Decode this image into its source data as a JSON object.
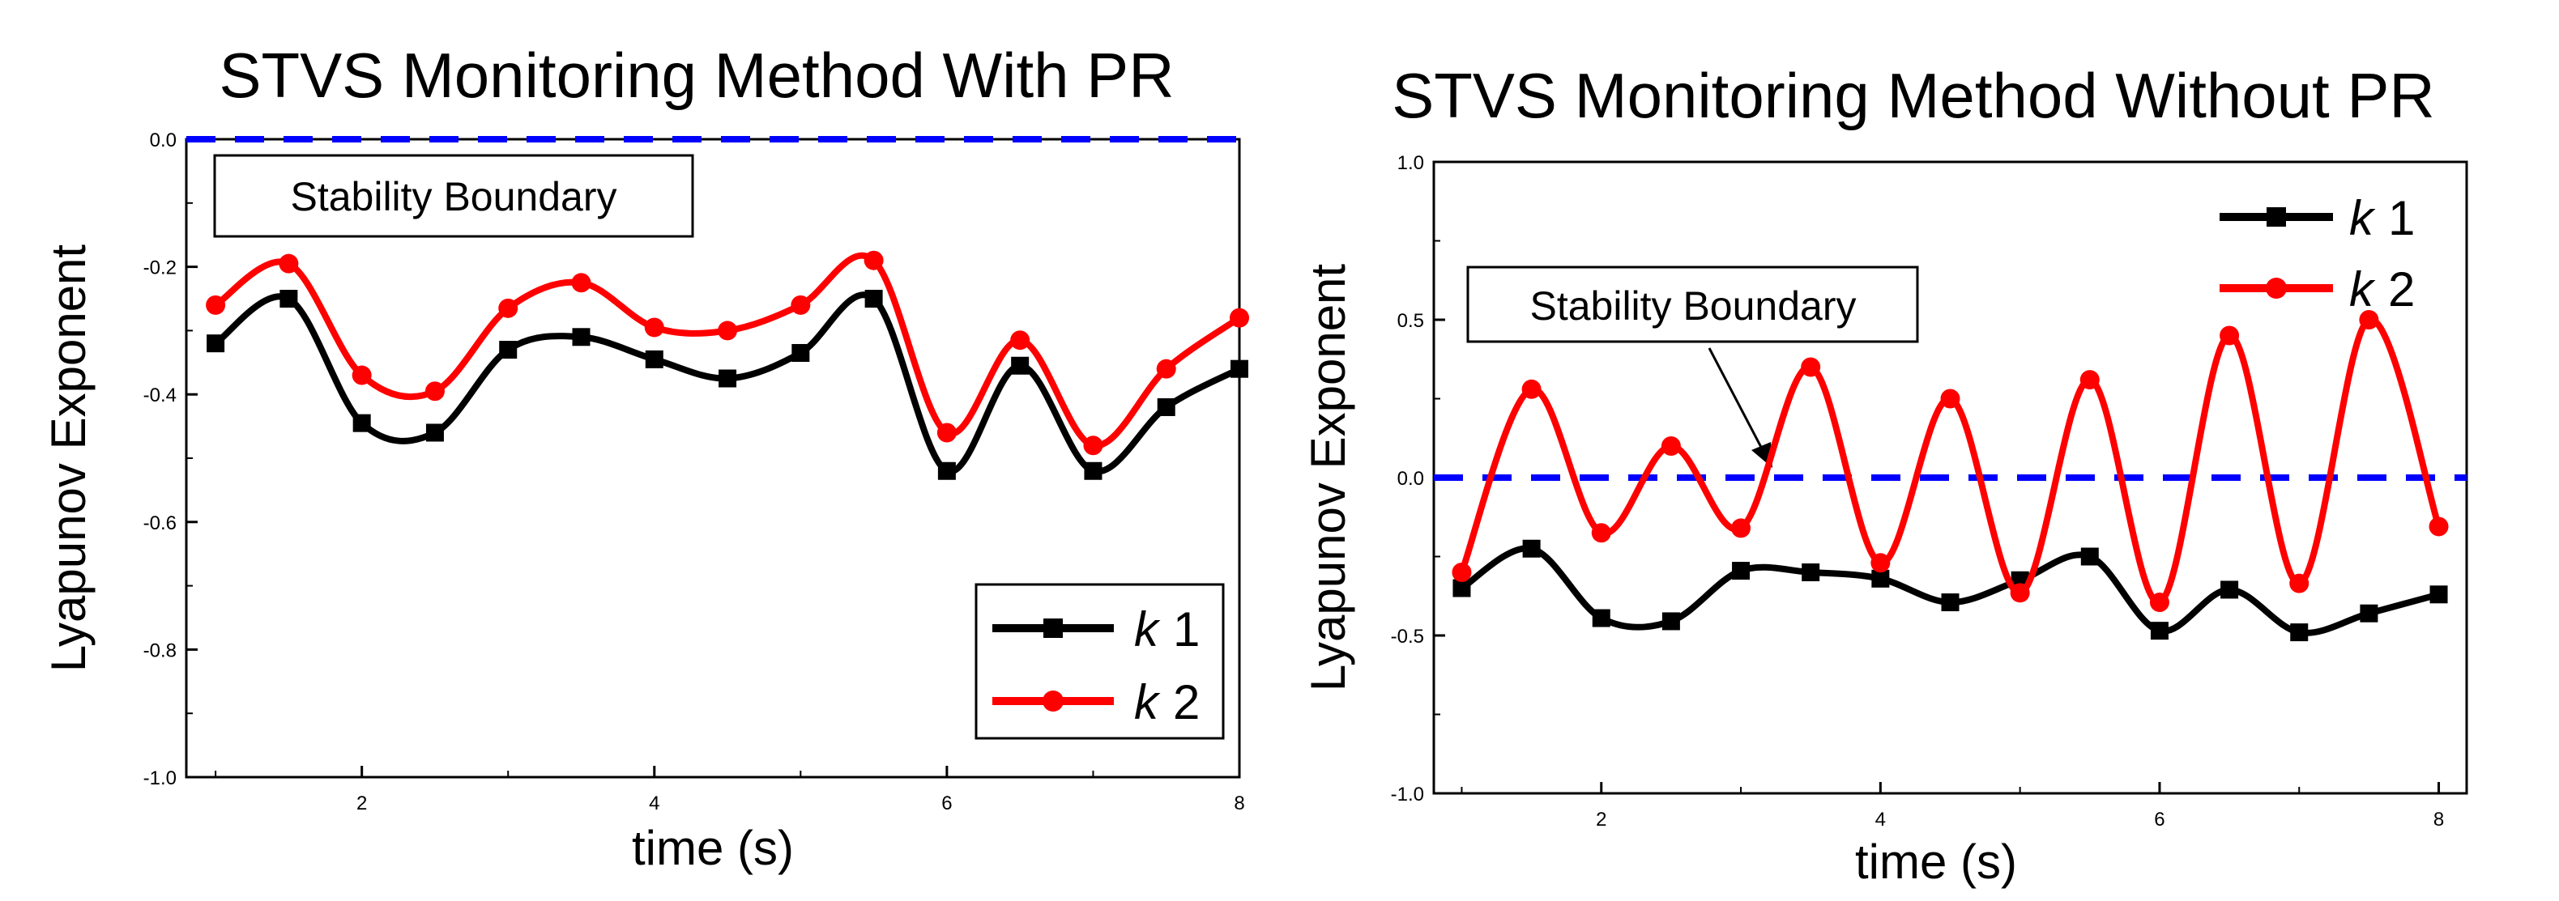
{
  "colors": {
    "k1": "#000000",
    "k2": "#ff0000",
    "boundary": "#0000ff"
  },
  "chart_data": [
    {
      "type": "line",
      "title": "STVS Monitoring Method With PR",
      "xlabel": "time (s)",
      "ylabel": "Lyapunov Exponent",
      "xlim": [
        0.8,
        8.0
      ],
      "ylim": [
        -1.0,
        0.0
      ],
      "xticks": [
        "2",
        "4",
        "6",
        "8"
      ],
      "yticks": [
        "0.0",
        "-0.2",
        "-0.4",
        "-0.6",
        "-0.8",
        "-1.0"
      ],
      "x": [
        1,
        1.5,
        2,
        2.5,
        3,
        3.5,
        4,
        4.5,
        5,
        5.5,
        6,
        6.5,
        7,
        7.5,
        8
      ],
      "series": [
        {
          "name": "k 1",
          "legend_k": "k",
          "legend_num": "1",
          "values": [
            -0.32,
            -0.25,
            -0.445,
            -0.46,
            -0.33,
            -0.31,
            -0.345,
            -0.375,
            -0.335,
            -0.25,
            -0.52,
            -0.355,
            -0.52,
            -0.42,
            -0.36
          ]
        },
        {
          "name": "k 2",
          "legend_k": "k",
          "legend_num": "2",
          "values": [
            -0.26,
            -0.195,
            -0.37,
            -0.395,
            -0.265,
            -0.225,
            -0.295,
            -0.3,
            -0.26,
            -0.19,
            -0.46,
            -0.315,
            -0.48,
            -0.36,
            -0.28
          ]
        }
      ],
      "boundary_y": 0.0,
      "annotation": "Stability Boundary",
      "legend_position": "bottom-right"
    },
    {
      "type": "line",
      "title": "STVS Monitoring Method Without PR",
      "xlabel": "time (s)",
      "ylabel": "Lyapunov Exponent",
      "xlim": [
        0.8,
        8.2
      ],
      "ylim": [
        -1.0,
        1.0
      ],
      "xticks": [
        "2",
        "4",
        "6",
        "8"
      ],
      "yticks": [
        "1.0",
        "0.5",
        "0.0",
        "-0.5",
        "-1.0"
      ],
      "x": [
        1,
        1.5,
        2,
        2.5,
        3,
        3.5,
        4,
        4.5,
        5,
        5.5,
        6,
        6.5,
        7,
        7.5,
        8
      ],
      "series": [
        {
          "name": "k 1",
          "legend_k": "k",
          "legend_num": "1",
          "values": [
            -0.35,
            -0.225,
            -0.445,
            -0.455,
            -0.295,
            -0.3,
            -0.32,
            -0.395,
            -0.325,
            -0.25,
            -0.485,
            -0.355,
            -0.49,
            -0.43,
            -0.37
          ]
        },
        {
          "name": "k 2",
          "legend_k": "k",
          "legend_num": "2",
          "values": [
            -0.3,
            0.28,
            -0.175,
            0.1,
            -0.16,
            0.35,
            -0.27,
            0.25,
            -0.365,
            0.31,
            -0.395,
            0.45,
            -0.335,
            0.5,
            -0.155
          ]
        }
      ],
      "boundary_y": 0.0,
      "annotation": "Stability Boundary",
      "legend_position": "top-right"
    }
  ]
}
